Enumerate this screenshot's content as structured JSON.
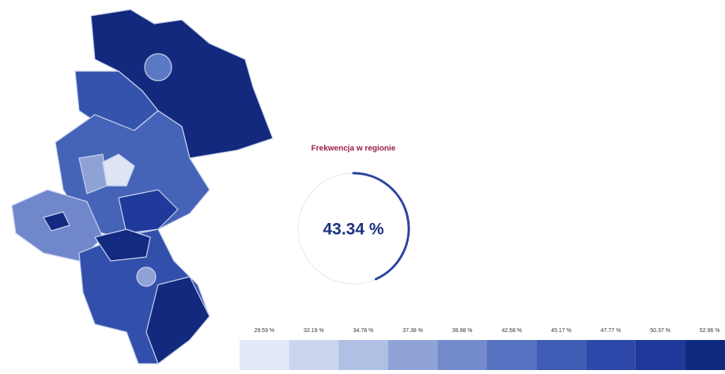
{
  "panel_title": "Frekwencja w regionie",
  "turnout": {
    "value": 43.34,
    "label": "43.34 %"
  },
  "legend": [
    "29.59 %",
    "32.19 %",
    "34.78 %",
    "37.38 %",
    "39.98 %",
    "42.58 %",
    "45.17 %",
    "47.77 %",
    "50.37 %",
    "52.96 %"
  ]
}
